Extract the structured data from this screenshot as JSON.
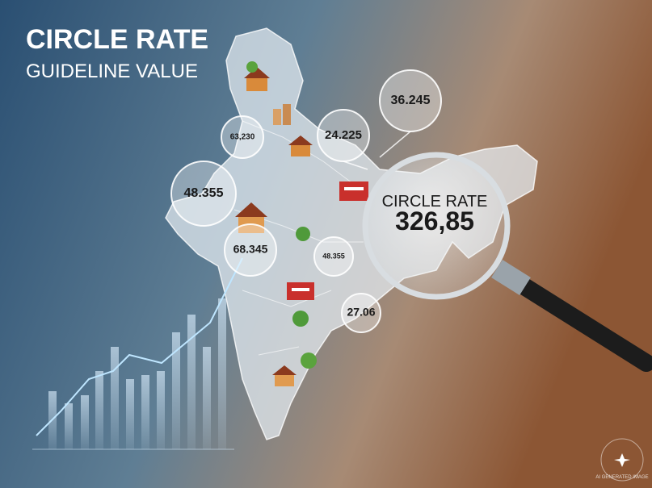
{
  "header": {
    "title": "CIRCLE RATE",
    "subtitle": "GUIDELINE VALUE"
  },
  "bubbles": [
    {
      "label": "36.245"
    },
    {
      "label": "63,230"
    },
    {
      "label": "24.225"
    },
    {
      "label": "48.355"
    },
    {
      "label": "68.345"
    },
    {
      "label": "48.355"
    },
    {
      "label": "27.06"
    }
  ],
  "magnifier": {
    "title": "CIRCLE RATE",
    "value": "326,85"
  },
  "watermark": "AI GENERATED IMAGE"
}
